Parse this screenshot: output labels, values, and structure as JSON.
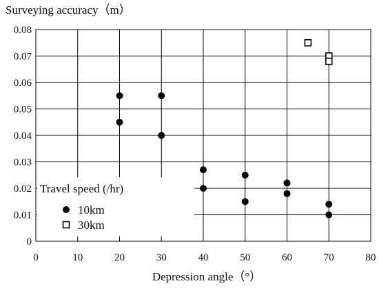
{
  "chart_data": {
    "type": "scatter",
    "title": "",
    "ylabel": "Surveying accuracy（m）",
    "xlabel": "Depression angle（°）",
    "xlim": [
      0,
      80
    ],
    "ylim": [
      0,
      0.08
    ],
    "xticks": [
      0,
      10,
      20,
      30,
      40,
      50,
      60,
      70,
      80
    ],
    "yticks": [
      0,
      0.01,
      0.02,
      0.03,
      0.04,
      0.05,
      0.06,
      0.07,
      0.08
    ],
    "ytick_labels": [
      "0",
      "0.01",
      "0.02",
      "0.03",
      "0.04",
      "0.05",
      "0.06",
      "0.07",
      "0.08"
    ],
    "grid": true,
    "legend": {
      "title": "Travel speed (/hr)",
      "placement": "bottom-left"
    },
    "series": [
      {
        "name": "10km",
        "marker": "filled-circle",
        "color": "#000000",
        "points": [
          [
            20,
            0.055
          ],
          [
            20,
            0.045
          ],
          [
            30,
            0.055
          ],
          [
            30,
            0.04
          ],
          [
            40,
            0.027
          ],
          [
            40,
            0.02
          ],
          [
            50,
            0.025
          ],
          [
            50,
            0.015
          ],
          [
            60,
            0.022
          ],
          [
            60,
            0.018
          ],
          [
            70,
            0.014
          ],
          [
            70,
            0.01
          ]
        ]
      },
      {
        "name": "30km",
        "marker": "open-square",
        "color": "#000000",
        "points": [
          [
            65,
            0.075
          ],
          [
            70,
            0.07
          ],
          [
            70,
            0.068
          ]
        ]
      }
    ]
  }
}
